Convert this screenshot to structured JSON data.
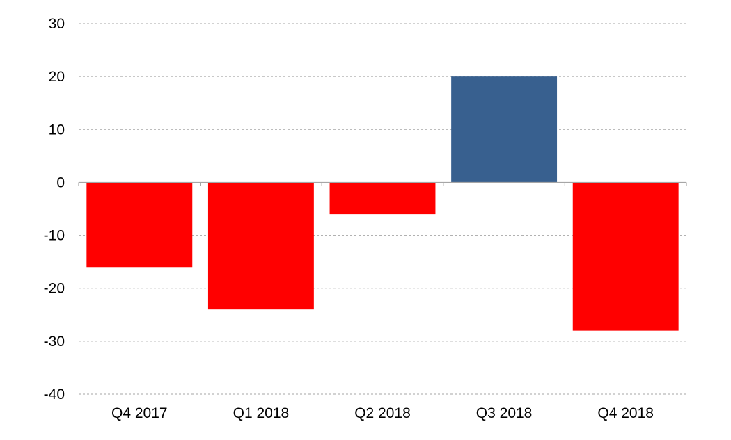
{
  "chart_data": {
    "type": "bar",
    "title": "",
    "xlabel": "",
    "ylabel": "",
    "categories": [
      "Q4 2017",
      "Q1 2018",
      "Q2 2018",
      "Q3 2018",
      "Q4 2018"
    ],
    "values": [
      -16,
      -24,
      -6,
      20,
      -28
    ],
    "ylim": [
      -40,
      30
    ],
    "yticks": [
      30,
      20,
      10,
      0,
      -10,
      -20,
      -30,
      -40
    ],
    "grid": true,
    "legend": "none",
    "colors": {
      "negative": "#ff0000",
      "positive": "#38608f",
      "grid": "#a6a6a6"
    }
  }
}
